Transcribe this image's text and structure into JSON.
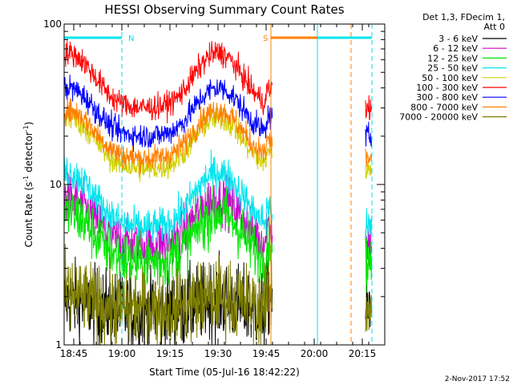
{
  "chart_data": {
    "type": "line",
    "title": "HESSI Observing Summary Count Rates",
    "xlabel": "Start Time (05-Jul-16 18:42:22)",
    "ylabel": "Count Rate (s",
    "ylabel_sup": "-1",
    "ylabel_tail": " detector",
    "ylabel_end": ")",
    "yscale": "log",
    "ylim": [
      1,
      100
    ],
    "xlim": [
      "18:42",
      "20:22"
    ],
    "x_ticks": [
      {
        "label": "18:45",
        "min": 3
      },
      {
        "label": "19:00",
        "min": 18
      },
      {
        "label": "19:15",
        "min": 33
      },
      {
        "label": "19:30",
        "min": 48
      },
      {
        "label": "19:45",
        "min": 63
      },
      {
        "label": "20:00",
        "min": 78
      },
      {
        "label": "20:15",
        "min": 93
      }
    ],
    "y_ticks": [
      {
        "label": "1",
        "value": 1
      },
      {
        "label": "10",
        "value": 10
      },
      {
        "label": "100",
        "value": 100
      }
    ],
    "legend_placement": "right",
    "legend_header": [
      "Det 1,3, FDecim 1,",
      "Att 0"
    ],
    "flags": [
      {
        "label": "N",
        "color": "#00e5ee",
        "bar": [
          0,
          18
        ],
        "dashed_at": 18
      },
      {
        "label": "S",
        "color": "#ff8000",
        "bar": [
          64.5,
          90
        ],
        "dashed_at": 89.5
      },
      {
        "label": "",
        "color": "#00e5ee",
        "bar": [
          79,
          96
        ],
        "dashed_at": 96
      }
    ],
    "boundaries": [
      {
        "min": 64.5,
        "color": "#ff8000"
      },
      {
        "min": 79,
        "color": "#00e5ee"
      }
    ],
    "segments": [
      [
        0,
        65
      ],
      [
        94,
        96
      ]
    ],
    "series": [
      {
        "name": "3 - 6 keV",
        "color": "#000000",
        "base": 1.6,
        "amp": 0.3,
        "noise": 0.55
      },
      {
        "name": "6 - 12 keV",
        "color": "#d000d0",
        "base": 4.2,
        "amp": 4.0,
        "noise": 0.35
      },
      {
        "name": "12 - 25 keV",
        "color": "#00e600",
        "base": 3.3,
        "amp": 3.3,
        "noise": 0.4
      },
      {
        "name": "25 - 50 keV",
        "color": "#00e5ee",
        "base": 5.4,
        "amp": 6.5,
        "noise": 0.25
      },
      {
        "name": "50 - 100 keV",
        "color": "#d0d000",
        "base": 12.5,
        "amp": 13.5,
        "noise": 0.18
      },
      {
        "name": "100 - 300 keV",
        "color": "#ff0000",
        "base": 30,
        "amp": 36,
        "noise": 0.18
      },
      {
        "name": "300 - 800 keV",
        "color": "#0000ff",
        "base": 20,
        "amp": 20,
        "noise": 0.18
      },
      {
        "name": "800 - 7000 keV",
        "color": "#ff8000",
        "base": 14.5,
        "amp": 14.5,
        "noise": 0.18
      },
      {
        "name": "7000 - 20000 keV",
        "color": "#808000",
        "base": 1.7,
        "amp": 0.3,
        "noise": 0.55
      }
    ],
    "timestamp": "2-Nov-2017 17:52"
  }
}
